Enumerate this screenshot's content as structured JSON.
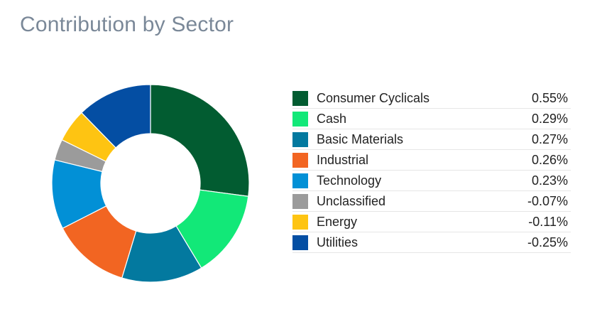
{
  "title": "Contribution by Sector",
  "chart_data": {
    "type": "pie",
    "variant": "donut",
    "title": "Contribution by Sector",
    "legend_position": "right",
    "slices": [
      {
        "label": "Consumer Cyclicals",
        "value": "0.55%",
        "magnitude": 0.55,
        "color": "#025c31"
      },
      {
        "label": "Cash",
        "value": "0.29%",
        "magnitude": 0.29,
        "color": "#12e878"
      },
      {
        "label": "Basic Materials",
        "value": "0.27%",
        "magnitude": 0.27,
        "color": "#03799f"
      },
      {
        "label": "Industrial",
        "value": "0.26%",
        "magnitude": 0.26,
        "color": "#f26522"
      },
      {
        "label": "Technology",
        "value": "0.23%",
        "magnitude": 0.23,
        "color": "#0290d6"
      },
      {
        "label": "Unclassified",
        "value": "-0.07%",
        "magnitude": 0.07,
        "color": "#9b9b9b"
      },
      {
        "label": "Energy",
        "value": "-0.11%",
        "magnitude": 0.11,
        "color": "#fec412"
      },
      {
        "label": "Utilities",
        "value": "-0.25%",
        "magnitude": 0.25,
        "color": "#044ea3"
      }
    ]
  }
}
